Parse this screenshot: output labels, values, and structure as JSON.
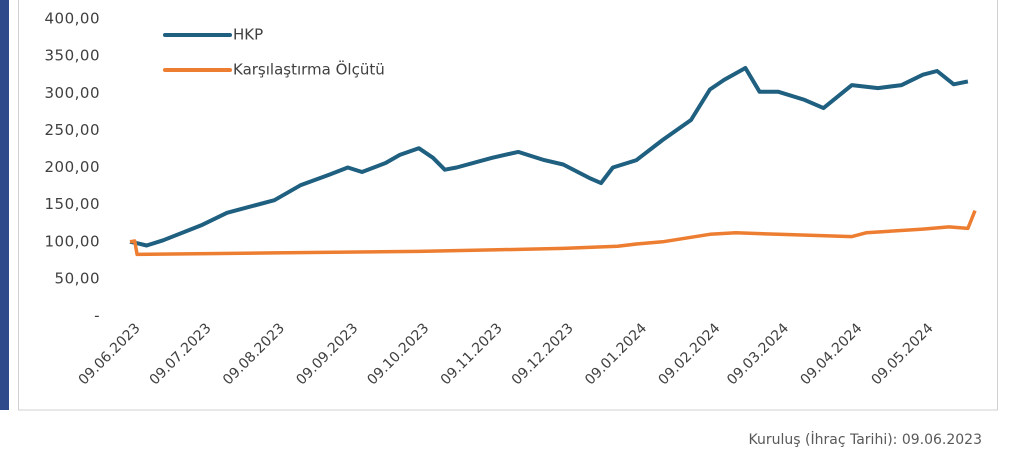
{
  "chart_data": {
    "type": "line",
    "series": [
      {
        "name": "HKP",
        "color": "#1f5f80",
        "x": [
          "09.06.2023",
          "12.06.2023",
          "16.06.2023",
          "23.06.2023",
          "09.07.2023",
          "20.07.2023",
          "09.08.2023",
          "20.08.2023",
          "01.09.2023",
          "09.09.2023",
          "15.09.2023",
          "25.09.2023",
          "01.10.2023",
          "09.10.2023",
          "15.10.2023",
          "20.10.2023",
          "25.10.2023",
          "09.11.2023",
          "20.11.2023",
          "01.12.2023",
          "09.12.2023",
          "20.12.2023",
          "25.12.2023",
          "30.12.2023",
          "09.01.2024",
          "20.01.2024",
          "01.02.2024",
          "09.02.2024",
          "15.02.2024",
          "24.02.2024",
          "01.03.2024",
          "09.03.2024",
          "20.03.2024",
          "28.03.2024",
          "09.04.2024",
          "20.04.2024",
          "30.04.2024",
          "09.05.2024",
          "15.05.2024",
          "22.05.2024",
          "28.05.2024"
        ],
        "values": [
          100,
          98,
          95,
          102,
          122,
          139,
          156,
          176,
          190,
          200,
          194,
          206,
          217,
          226,
          213,
          197,
          200,
          213,
          221,
          210,
          204,
          186,
          179,
          200,
          210,
          237,
          264,
          305,
          318,
          334,
          302,
          302,
          291,
          280,
          311,
          307,
          311,
          325,
          330,
          312,
          316
        ]
      },
      {
        "name": "Karşılaştırma Ölçütü",
        "color": "#ed7d31",
        "x": [
          "09.06.2023",
          "11.06.2023",
          "12.06.2023",
          "09.08.2023",
          "09.10.2023",
          "09.11.2023",
          "09.12.2023",
          "01.01.2024",
          "09.01.2024",
          "20.01.2024",
          "09.02.2024",
          "20.02.2024",
          "09.03.2024",
          "09.04.2024",
          "15.04.2024",
          "09.05.2024",
          "20.05.2024",
          "28.05.2024",
          "31.05.2024"
        ],
        "values": [
          100,
          101,
          83,
          85,
          87,
          89,
          91,
          94,
          97,
          100,
          110,
          112,
          110,
          107,
          112,
          117,
          120,
          118,
          142
        ]
      }
    ],
    "xlim": [
      "09.06.2023",
      "31.05.2024"
    ],
    "xticks": [
      "09.06.2023",
      "09.07.2023",
      "09.08.2023",
      "09.09.2023",
      "09.10.2023",
      "09.11.2023",
      "09.12.2023",
      "09.01.2024",
      "09.02.2024",
      "09.03.2024",
      "09.04.2024",
      "09.05.2024"
    ],
    "ylim": [
      0,
      400
    ],
    "yticks": [
      {
        "value": 0,
        "label": "-"
      },
      {
        "value": 50,
        "label": "50,00"
      },
      {
        "value": 100,
        "label": "100,00"
      },
      {
        "value": 150,
        "label": "150,00"
      },
      {
        "value": 200,
        "label": "200,00"
      },
      {
        "value": 250,
        "label": "250,00"
      },
      {
        "value": 300,
        "label": "300,00"
      },
      {
        "value": 350,
        "label": "350,00"
      },
      {
        "value": 400,
        "label": "400,00"
      }
    ],
    "grid": false,
    "legend": "top-left",
    "footnote": "Kuruluş (İhraç Tarihi): 09.06.2023"
  }
}
